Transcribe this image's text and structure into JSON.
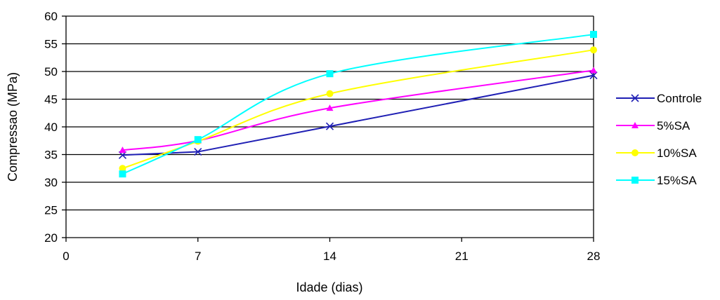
{
  "chart_data": {
    "type": "line",
    "title": "",
    "xlabel": "Idade (dias)",
    "ylabel": "Compressao (MPa)",
    "xlim": [
      0,
      28
    ],
    "ylim": [
      20,
      60
    ],
    "xticks": [
      0,
      7,
      14,
      21,
      28
    ],
    "yticks": [
      20,
      25,
      30,
      35,
      40,
      45,
      50,
      55,
      60
    ],
    "x": [
      3,
      7,
      14,
      28
    ],
    "grid": "horizontal",
    "legend_position": "right",
    "series": [
      {
        "name": "Controle",
        "values": [
          34.9,
          35.5,
          40.1,
          49.3
        ],
        "color": "#1f1fb4",
        "marker": "x"
      },
      {
        "name": "5%SA",
        "values": [
          35.8,
          37.5,
          43.4,
          50.2
        ],
        "color": "#ff00ff",
        "marker": "triangle"
      },
      {
        "name": "10%SA",
        "values": [
          32.5,
          37.4,
          46.0,
          53.9
        ],
        "color": "#ffff00",
        "marker": "circle"
      },
      {
        "name": "15%SA",
        "values": [
          31.5,
          37.7,
          49.6,
          56.7
        ],
        "color": "#00ffff",
        "marker": "square"
      }
    ]
  }
}
